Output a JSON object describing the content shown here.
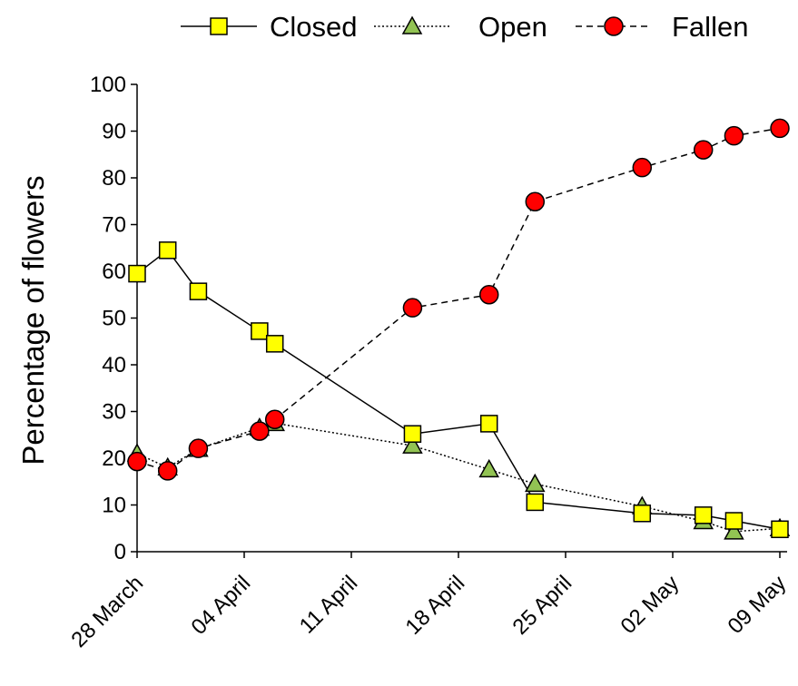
{
  "chart_data": {
    "type": "line",
    "title": "",
    "xlabel": "",
    "ylabel": "Percentage of flowers",
    "ylim": [
      0,
      100
    ],
    "yticks": [
      0,
      10,
      20,
      30,
      40,
      50,
      60,
      70,
      80,
      90,
      100
    ],
    "xlim": [
      "2014-03-28",
      "2014-05-09"
    ],
    "xticks": [
      {
        "date": "2014-03-28",
        "label": "28 March"
      },
      {
        "date": "2014-04-04",
        "label": "04 April"
      },
      {
        "date": "2014-04-11",
        "label": "11 April"
      },
      {
        "date": "2014-04-18",
        "label": "18 April"
      },
      {
        "date": "2014-04-25",
        "label": "25 April"
      },
      {
        "date": "2014-05-02",
        "label": "02 May"
      },
      {
        "date": "2014-05-09",
        "label": "09 May"
      }
    ],
    "grid": false,
    "legend_position": "top",
    "series": [
      {
        "name": "Closed",
        "line_style": "solid",
        "marker": "square",
        "color": "#ffff00",
        "points": [
          {
            "x": "2014-03-28",
            "y": 59.5
          },
          {
            "x": "2014-03-30",
            "y": 64.5
          },
          {
            "x": "2014-04-01",
            "y": 55.7
          },
          {
            "x": "2014-04-05",
            "y": 47.2
          },
          {
            "x": "2014-04-06",
            "y": 44.5
          },
          {
            "x": "2014-04-15",
            "y": 25.2
          },
          {
            "x": "2014-04-20",
            "y": 27.4
          },
          {
            "x": "2014-04-23",
            "y": 10.6
          },
          {
            "x": "2014-04-30",
            "y": 8.2
          },
          {
            "x": "2014-05-04",
            "y": 7.8
          },
          {
            "x": "2014-05-06",
            "y": 6.6
          },
          {
            "x": "2014-05-09",
            "y": 4.8
          }
        ]
      },
      {
        "name": "Open",
        "line_style": "dotted",
        "marker": "triangle",
        "color": "#92c353",
        "points": [
          {
            "x": "2014-03-28",
            "y": 21.0
          },
          {
            "x": "2014-03-30",
            "y": 18.0
          },
          {
            "x": "2014-04-01",
            "y": 22.0
          },
          {
            "x": "2014-04-05",
            "y": 26.5
          },
          {
            "x": "2014-04-06",
            "y": 27.5
          },
          {
            "x": "2014-04-15",
            "y": 22.7
          },
          {
            "x": "2014-04-20",
            "y": 17.6
          },
          {
            "x": "2014-04-23",
            "y": 14.5
          },
          {
            "x": "2014-04-30",
            "y": 9.7
          },
          {
            "x": "2014-05-04",
            "y": 6.5
          },
          {
            "x": "2014-05-06",
            "y": 4.3
          },
          {
            "x": "2014-05-09",
            "y": 5.0
          }
        ]
      },
      {
        "name": "Fallen",
        "line_style": "dashed",
        "marker": "circle",
        "color": "#ff0000",
        "points": [
          {
            "x": "2014-03-28",
            "y": 19.3
          },
          {
            "x": "2014-03-30",
            "y": 17.3
          },
          {
            "x": "2014-04-01",
            "y": 22.1
          },
          {
            "x": "2014-04-05",
            "y": 25.8
          },
          {
            "x": "2014-04-06",
            "y": 28.3
          },
          {
            "x": "2014-04-15",
            "y": 52.2
          },
          {
            "x": "2014-04-20",
            "y": 55.0
          },
          {
            "x": "2014-04-23",
            "y": 74.9
          },
          {
            "x": "2014-04-30",
            "y": 82.2
          },
          {
            "x": "2014-05-04",
            "y": 86.0
          },
          {
            "x": "2014-05-06",
            "y": 89.0
          },
          {
            "x": "2014-05-09",
            "y": 90.6
          }
        ]
      }
    ]
  }
}
